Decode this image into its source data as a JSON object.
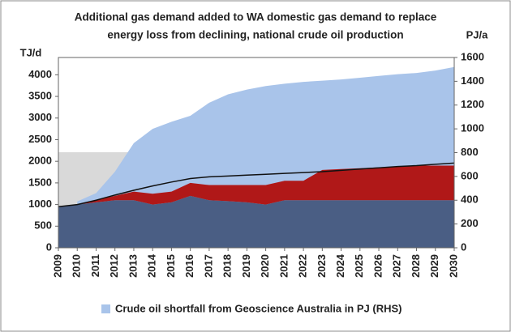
{
  "chart_data": {
    "type": "area",
    "title": [
      "Additional gas demand added to WA domestic gas demand to replace",
      "energy loss from declining, national crude oil production"
    ],
    "ylabel": "TJ/d",
    "y2label": "PJ/a",
    "categories": [
      "2009",
      "2010",
      "2011",
      "2012",
      "2013",
      "2014",
      "2015",
      "2016",
      "2017",
      "2018",
      "2019",
      "2020",
      "2021",
      "2022",
      "2023",
      "2024",
      "2025",
      "2026",
      "2027",
      "2028",
      "2029",
      "2030"
    ],
    "ylim": [
      0,
      4400
    ],
    "yticks": [
      0,
      500,
      1000,
      1500,
      2000,
      2500,
      3000,
      3500,
      4000
    ],
    "y2lim": [
      0,
      1600
    ],
    "y2ticks": [
      0,
      200,
      400,
      600,
      800,
      1000,
      1200,
      1400,
      1600
    ],
    "series": [
      {
        "name": "Crude oil shortfall from Geoscience Australia in PJ (RHS)",
        "color": "#a9c4ea",
        "axis": "y2",
        "values": [
          null,
          390,
          460,
          640,
          880,
          1000,
          1060,
          1110,
          1220,
          1290,
          1330,
          1360,
          1380,
          1395,
          1405,
          1415,
          1430,
          1445,
          1460,
          1470,
          1490,
          1520
        ]
      },
      {
        "color": "#4a5e84",
        "stack": true,
        "values": [
          950,
          1000,
          1050,
          1100,
          1100,
          1000,
          1050,
          1200,
          1100,
          1080,
          1050,
          1000,
          1100,
          1100,
          1100,
          1100,
          1100,
          1100,
          1100,
          1100,
          1100,
          1100
        ]
      },
      {
        "color": "#b01818",
        "stack": true,
        "values": [
          0,
          0,
          50,
          100,
          200,
          250,
          250,
          300,
          350,
          370,
          400,
          450,
          450,
          450,
          700,
          720,
          740,
          760,
          780,
          800,
          800,
          800
        ]
      },
      {
        "color": "#111111",
        "type": "line",
        "values": [
          950,
          1000,
          1100,
          1220,
          1330,
          1430,
          1520,
          1600,
          1640,
          1660,
          1680,
          1700,
          1720,
          1740,
          1760,
          1790,
          1820,
          1850,
          1880,
          1900,
          1930,
          1960
        ]
      }
    ]
  }
}
